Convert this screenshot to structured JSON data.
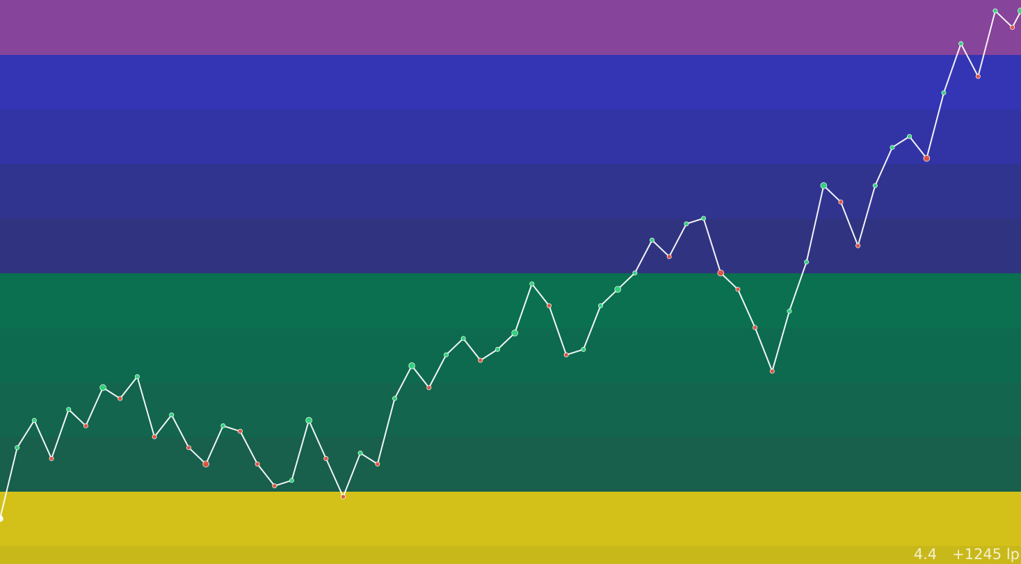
{
  "status": {
    "rating": "4.4",
    "lp_change": "+1245 lp"
  },
  "colors": {
    "bands": [
      "#87449b",
      "#3435b4",
      "#3234a6",
      "#31348f",
      "#303480",
      "#0a7050",
      "#0e6a4e",
      "#13654d",
      "#185f4c",
      "#d3c11a"
    ],
    "footer": "#c9b819",
    "line": "#ffffff",
    "point_up": "#2ed47a",
    "point_down": "#e5503e",
    "point_flat": "#ffffff"
  },
  "chart_data": {
    "type": "line",
    "title": "",
    "xlabel": "",
    "ylabel": "",
    "grid": false,
    "legend": "none",
    "x_range": [
      0,
      1190
    ],
    "y_range": [
      0,
      10
    ],
    "bands": [
      0,
      1,
      2,
      3,
      4,
      5,
      6,
      7,
      8,
      9
    ],
    "series": [
      {
        "x": [
          0,
          20,
          40,
          60,
          80,
          100,
          120,
          140,
          160,
          180,
          200,
          220,
          240,
          260,
          280,
          300,
          320,
          340,
          360,
          380,
          400,
          420,
          440,
          460,
          480,
          500,
          520,
          540,
          560,
          580,
          600,
          620,
          640,
          660,
          680,
          700,
          720,
          740,
          760,
          780,
          800,
          820,
          840,
          860,
          880,
          900,
          920,
          940,
          960,
          980,
          1000,
          1020,
          1040,
          1060,
          1080,
          1100,
          1120,
          1140,
          1160,
          1180,
          1190
        ],
        "values": [
          0.5,
          1.8,
          2.3,
          1.6,
          2.5,
          2.2,
          2.9,
          2.7,
          3.1,
          2.0,
          2.4,
          1.8,
          1.5,
          2.2,
          2.1,
          1.5,
          1.1,
          1.2,
          2.3,
          1.6,
          0.9,
          1.7,
          1.5,
          2.7,
          3.3,
          2.9,
          3.5,
          3.8,
          3.4,
          3.6,
          3.9,
          4.8,
          4.4,
          3.5,
          3.6,
          4.4,
          4.7,
          5.0,
          5.6,
          5.3,
          5.9,
          6.0,
          5.0,
          4.7,
          4.0,
          3.2,
          4.3,
          5.2,
          6.6,
          6.3,
          5.5,
          6.6,
          7.3,
          7.5,
          7.1,
          8.3,
          9.2,
          8.6,
          9.8,
          9.5,
          9.8
        ]
      }
    ]
  }
}
